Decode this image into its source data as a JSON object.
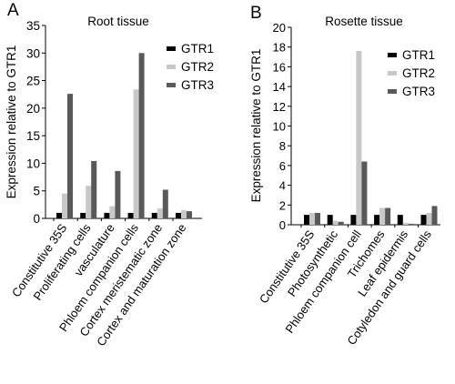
{
  "colors": {
    "GTR1": "#000000",
    "GTR2": "#c8c8c8",
    "GTR3": "#595959",
    "axis": "#000000"
  },
  "chart_data": [
    {
      "panel_label": "A",
      "title": "Root tissue",
      "type": "bar",
      "ylabel": "Expression relative to GTR1",
      "xlabel": "",
      "ylim": [
        0,
        35
      ],
      "yticks": [
        0,
        5,
        10,
        15,
        20,
        25,
        30,
        35
      ],
      "categories": [
        "Constitutive 35S",
        "Proliferating cells",
        "vasculature",
        "Phloem companion cells",
        "Cortex meristematic zone",
        "Cortex and maturation zone"
      ],
      "series": [
        {
          "name": "GTR1",
          "values": [
            1,
            1,
            1,
            1,
            1,
            1
          ]
        },
        {
          "name": "GTR2",
          "values": [
            4.5,
            5.9,
            2.2,
            23.4,
            1.8,
            1.5
          ]
        },
        {
          "name": "GTR3",
          "values": [
            22.6,
            10.4,
            8.6,
            30.0,
            5.2,
            1.3
          ]
        }
      ],
      "legend": "top-right",
      "grid": false
    },
    {
      "panel_label": "B",
      "title": "Rosette tissue",
      "type": "bar",
      "ylabel": "Expression relative to GTR1",
      "xlabel": "",
      "ylim": [
        0,
        20
      ],
      "yticks": [
        0,
        2,
        4,
        6,
        8,
        10,
        12,
        14,
        16,
        18,
        20
      ],
      "categories": [
        "Constitutive 35S",
        "Photosynthetic",
        "Phloem companion cell",
        "Trichomes",
        "Leaf epidermis",
        "Cotyledon and guard cells"
      ],
      "series": [
        {
          "name": "GTR1",
          "values": [
            1,
            1,
            1,
            1,
            1,
            1
          ]
        },
        {
          "name": "GTR2",
          "values": [
            1.2,
            0.4,
            17.6,
            1.7,
            0.2,
            1.2
          ]
        },
        {
          "name": "GTR3",
          "values": [
            1.2,
            0.3,
            6.4,
            1.7,
            0.1,
            1.9
          ]
        }
      ],
      "legend": "top-right",
      "grid": false
    }
  ]
}
